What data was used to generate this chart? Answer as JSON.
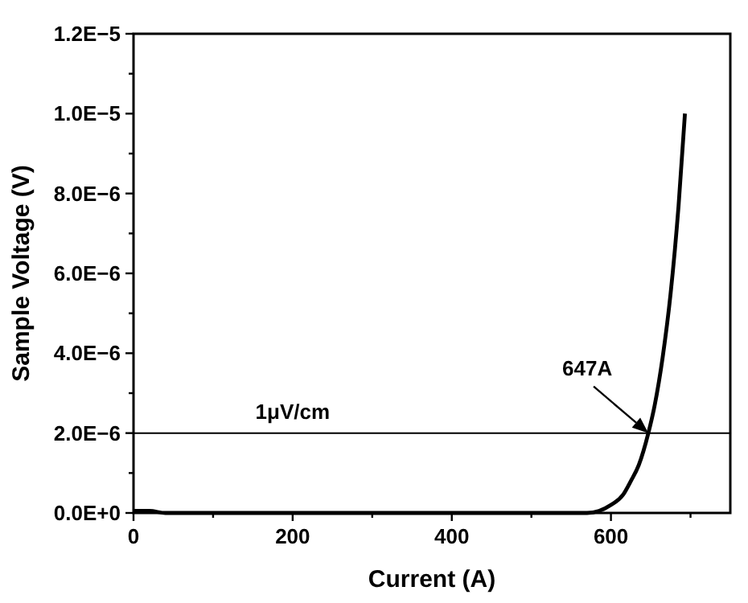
{
  "chart_data": {
    "type": "line",
    "xlabel": "Current (A)",
    "ylabel": "Sample Voltage (V)",
    "x": [
      0,
      20,
      40,
      60,
      100,
      200,
      300,
      400,
      500,
      550,
      570,
      585,
      600,
      615,
      625,
      635,
      647,
      655,
      665,
      675,
      685,
      693
    ],
    "series": [
      {
        "color": "#000000",
        "values": [
          5e-08,
          5e-08,
          0,
          0,
          0,
          0,
          0,
          0,
          0,
          0,
          0,
          5e-08,
          2e-07,
          4.5e-07,
          8e-07,
          1.2e-06,
          2e-06,
          2.7e-06,
          3.9e-06,
          5.5e-06,
          7.7e-06,
          1e-05
        ]
      }
    ],
    "xlim": [
      0,
      750
    ],
    "xticks": [
      0,
      {
        "value": 100,
        "label": null
      },
      200,
      {
        "value": 300,
        "label": null
      },
      400,
      {
        "value": 500,
        "label": null
      },
      600,
      {
        "value": 700,
        "label": null
      }
    ],
    "ylim": [
      0,
      1.2e-05
    ],
    "yticks": [
      {
        "value": 0,
        "label": "0.0E+0"
      },
      {
        "value": 1e-06,
        "label": null
      },
      {
        "value": 2e-06,
        "label": "2.0E−6"
      },
      {
        "value": 3e-06,
        "label": null
      },
      {
        "value": 4e-06,
        "label": "4.0E−6"
      },
      {
        "value": 5e-06,
        "label": null
      },
      {
        "value": 6e-06,
        "label": "6.0E−6"
      },
      {
        "value": 7e-06,
        "label": null
      },
      {
        "value": 8e-06,
        "label": "8.0E−6"
      },
      {
        "value": 9e-06,
        "label": null
      },
      {
        "value": 1e-05,
        "label": "1.0E−5"
      },
      {
        "value": 1.1e-05,
        "label": null
      },
      {
        "value": 1.2e-05,
        "label": "1.2E−5"
      }
    ],
    "ref_lines": [
      {
        "axis": "y",
        "value": 2e-06,
        "label": "1μV/cm",
        "color": "#000000"
      }
    ],
    "annotations": [
      "647A"
    ],
    "grid": false,
    "marker": "none",
    "line_style": "solid"
  }
}
